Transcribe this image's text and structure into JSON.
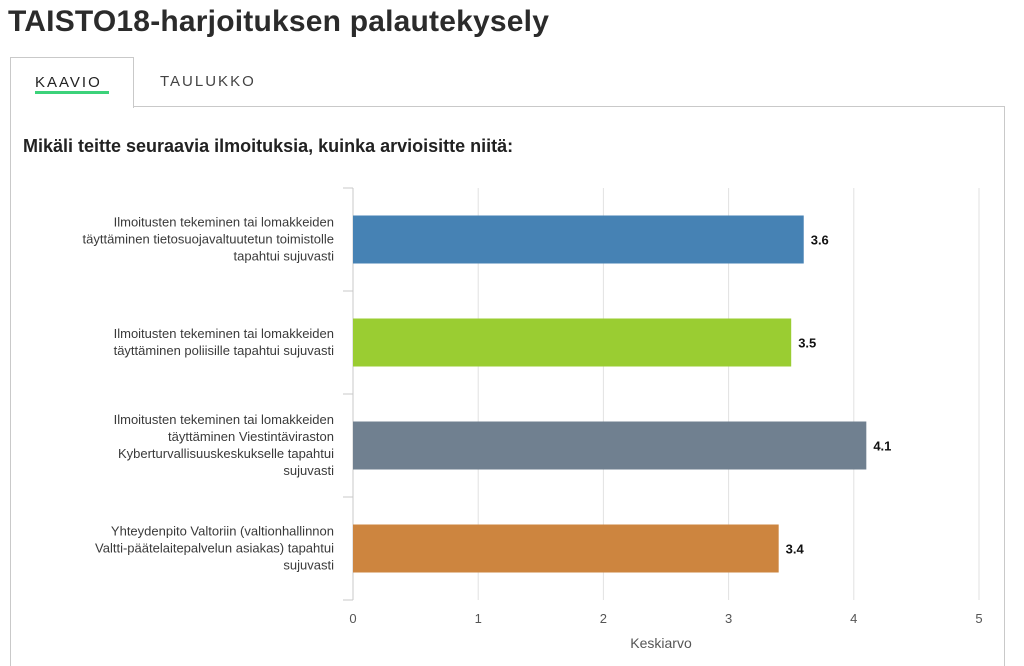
{
  "page": {
    "title": "TAISTO18-harjoituksen palautekysely"
  },
  "tabs": [
    {
      "label": "KAAVIO",
      "active": true
    },
    {
      "label": "TAULUKKO",
      "active": false
    }
  ],
  "question": "Mikäli teitte seuraavia ilmoituksia, kuinka arvioisitte niitä:",
  "chart_data": {
    "type": "bar",
    "orientation": "horizontal",
    "categories": [
      [
        "Ilmoitusten tekeminen tai lomakkeiden",
        "täyttäminen tietosuojavaltuutetun toimistolle",
        "tapahtui sujuvasti"
      ],
      [
        "Ilmoitusten tekeminen tai lomakkeiden",
        "täyttäminen poliisille tapahtui sujuvasti"
      ],
      [
        "Ilmoitusten tekeminen tai lomakkeiden",
        "täyttäminen Viestintäviraston",
        "Kyberturvallisuuskeskukselle tapahtui",
        "sujuvasti"
      ],
      [
        "Yhteydenpito Valtoriin (valtionhallinnon",
        "Valtti-päätelaitepalvelun asiakas) tapahtui",
        "sujuvasti"
      ]
    ],
    "values": [
      3.6,
      3.5,
      4.1,
      3.4
    ],
    "value_labels": [
      "3.6",
      "3.5",
      "4.1",
      "3.4"
    ],
    "colors": [
      "#4682b4",
      "#9acd32",
      "#708090",
      "#cd853f"
    ],
    "xlabel": "Keskiarvo",
    "xlim": [
      0,
      5
    ],
    "xticks": [
      "0",
      "1",
      "2",
      "3",
      "4",
      "5"
    ],
    "grid": true
  }
}
